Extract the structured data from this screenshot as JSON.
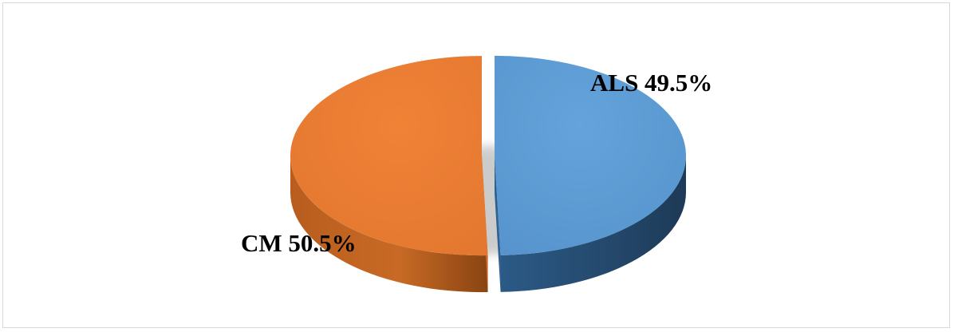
{
  "chart_data": {
    "type": "pie",
    "title": "",
    "style": "3d-exploded",
    "slices": [
      {
        "label": "ALS",
        "value": 49.5,
        "display": "ALS 49.5%",
        "color": "#5B9BD5"
      },
      {
        "label": "CM",
        "value": 50.5,
        "display": "CM 50.5%",
        "color": "#ED7D31"
      }
    ],
    "legend": "none"
  }
}
